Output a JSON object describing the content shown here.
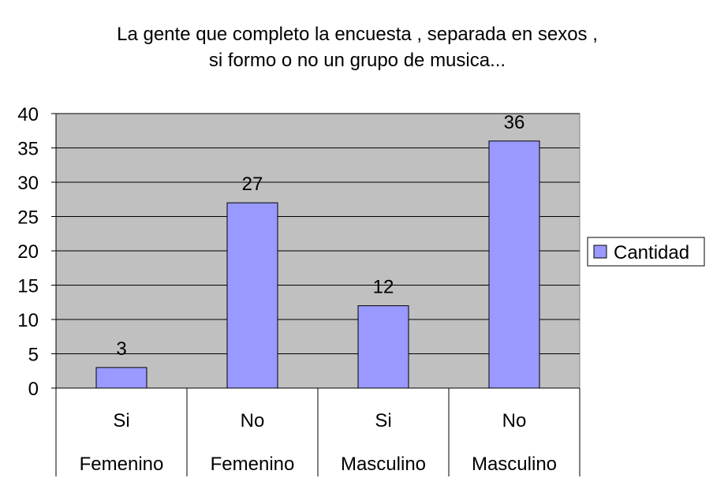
{
  "chart_data": {
    "type": "bar",
    "title_lines": [
      "La gente que completo la encuesta , separada en sexos ,",
      "si formo o no un grupo de musica..."
    ],
    "categories": [
      {
        "top": "Si",
        "bottom": "Femenino"
      },
      {
        "top": "No",
        "bottom": "Femenino"
      },
      {
        "top": "Si",
        "bottom": "Masculino"
      },
      {
        "top": "No",
        "bottom": "Masculino"
      }
    ],
    "series": [
      {
        "name": "Cantidad",
        "values": [
          3,
          27,
          12,
          36
        ]
      }
    ],
    "data_labels": [
      "3",
      "27",
      "12",
      "36"
    ],
    "ylim": [
      0,
      40
    ],
    "y_ticks": [
      "0",
      "5",
      "10",
      "15",
      "20",
      "25",
      "30",
      "35",
      "40"
    ],
    "grid": true,
    "legend": "right",
    "colors": {
      "bar": "#9999ff",
      "plot_background": "#c0c0c0",
      "gridline": "#000000"
    }
  }
}
